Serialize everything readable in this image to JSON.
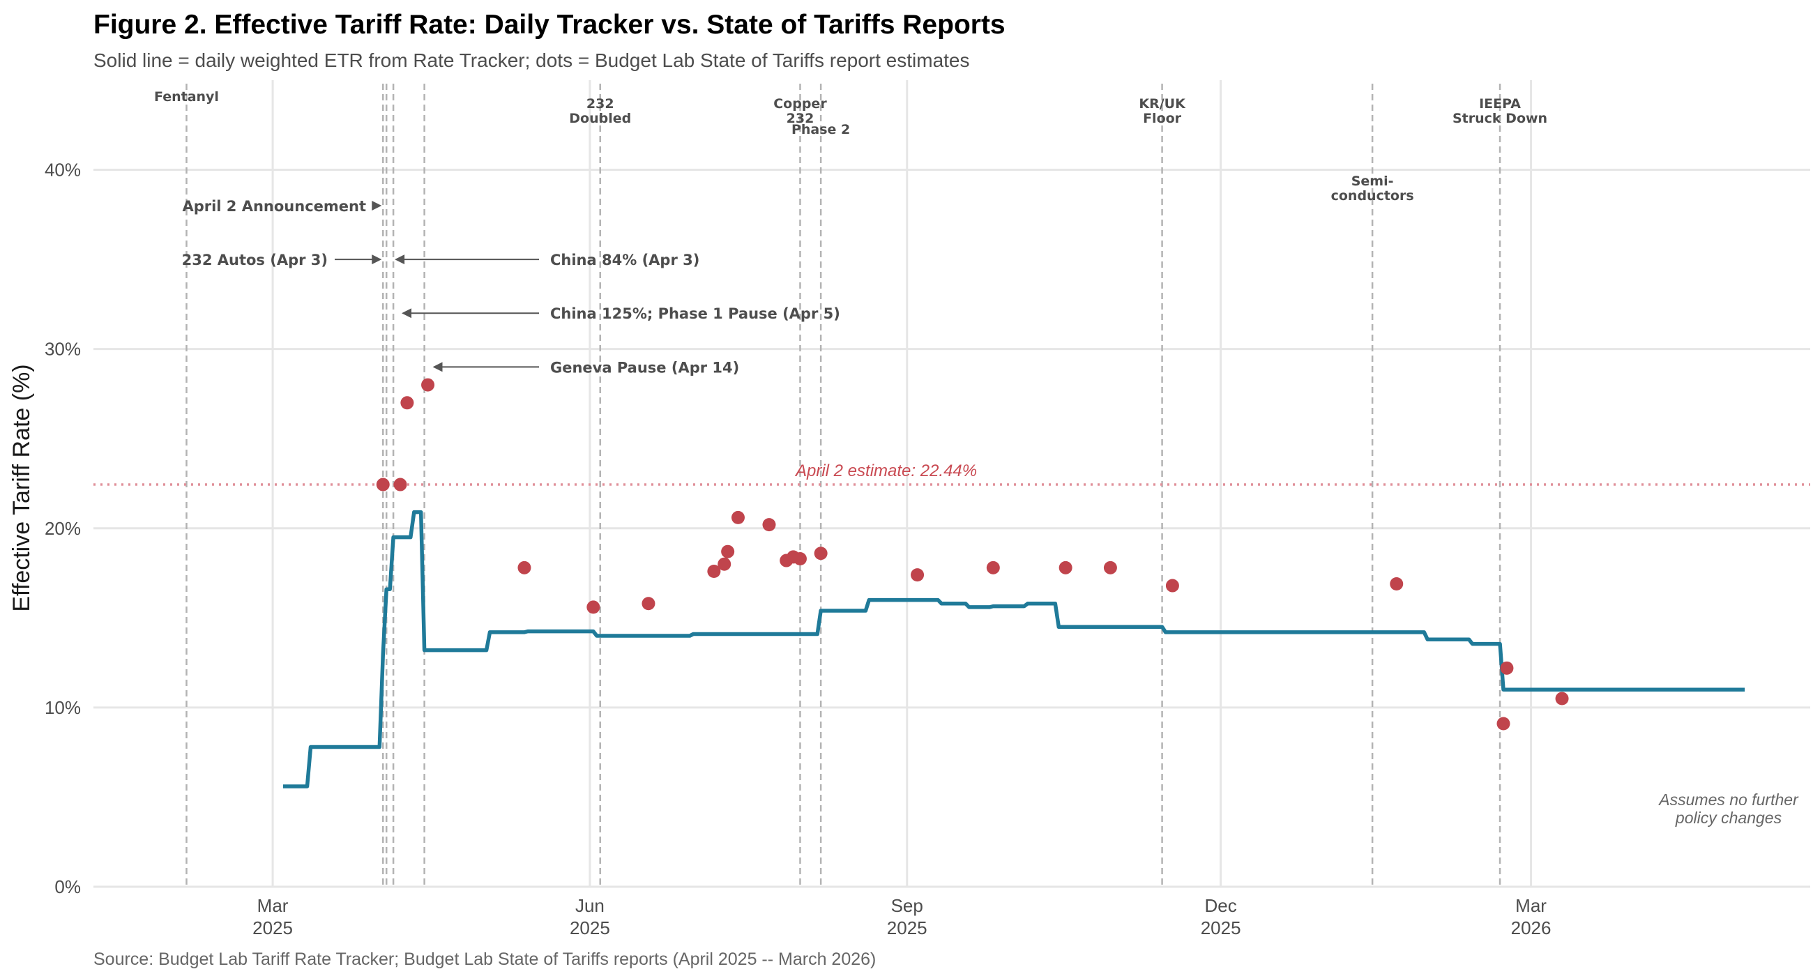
{
  "chart_data": {
    "type": "line",
    "title": "Figure 2. Effective Tariff Rate: Daily Tracker vs. State of Tariffs Reports",
    "subtitle": "Solid line = daily weighted ETR from Rate Tracker; dots = Budget Lab State of Tariffs report estimates",
    "caption": "Source: Budget Lab Tariff Rate Tracker; Budget Lab State of Tariffs reports (April 2025 -- March 2026)",
    "ylabel": "Effective Tariff Rate (%)",
    "xlabel": "",
    "xlim": [
      "2025-01-08",
      "2026-05-21"
    ],
    "ylim": [
      0,
      45
    ],
    "y_ticks": [
      {
        "value": 0,
        "label": "0%"
      },
      {
        "value": 10,
        "label": "10%"
      },
      {
        "value": 20,
        "label": "20%"
      },
      {
        "value": 30,
        "label": "30%"
      },
      {
        "value": 40,
        "label": "40%"
      }
    ],
    "x_ticks": [
      {
        "date": "2025-03-01",
        "line1": "Mar",
        "line2": "2025"
      },
      {
        "date": "2025-06-01",
        "line1": "Jun",
        "line2": "2025"
      },
      {
        "date": "2025-09-01",
        "line1": "Sep",
        "line2": "2025"
      },
      {
        "date": "2025-12-01",
        "line1": "Dec",
        "line2": "2025"
      },
      {
        "date": "2026-03-01",
        "line1": "Mar",
        "line2": "2026"
      }
    ],
    "grid": true,
    "colors": {
      "line": "#1f7a99",
      "dots": "#c0444c",
      "reference": "#e0909a",
      "events": "#b3b3b3",
      "arrows": "#555555"
    },
    "series": [
      {
        "type": "step-line",
        "points": [
          [
            "2025-03-04",
            5.6
          ],
          [
            "2025-03-11",
            5.6
          ],
          [
            "2025-03-12",
            7.8
          ],
          [
            "2025-04-01",
            7.8
          ],
          [
            "2025-04-02",
            13.0
          ],
          [
            "2025-04-03",
            16.6
          ],
          [
            "2025-04-04",
            16.6
          ],
          [
            "2025-04-05",
            19.5
          ],
          [
            "2025-04-09",
            19.5
          ],
          [
            "2025-04-10",
            19.5
          ],
          [
            "2025-04-11",
            20.9
          ],
          [
            "2025-04-13",
            20.9
          ],
          [
            "2025-04-14",
            13.2
          ],
          [
            "2025-05-02",
            13.2
          ],
          [
            "2025-05-03",
            14.2
          ],
          [
            "2025-05-13",
            14.2
          ],
          [
            "2025-05-14",
            14.25
          ],
          [
            "2025-06-02",
            14.25
          ],
          [
            "2025-06-03",
            14.0
          ],
          [
            "2025-06-30",
            14.0
          ],
          [
            "2025-07-01",
            14.1
          ],
          [
            "2025-08-06",
            14.1
          ],
          [
            "2025-08-07",
            15.4
          ],
          [
            "2025-08-20",
            15.4
          ],
          [
            "2025-08-21",
            16.0
          ],
          [
            "2025-09-10",
            16.0
          ],
          [
            "2025-09-11",
            15.8
          ],
          [
            "2025-09-18",
            15.8
          ],
          [
            "2025-09-19",
            15.6
          ],
          [
            "2025-09-25",
            15.6
          ],
          [
            "2025-09-26",
            15.65
          ],
          [
            "2025-10-05",
            15.65
          ],
          [
            "2025-10-06",
            15.8
          ],
          [
            "2025-10-14",
            15.8
          ],
          [
            "2025-10-15",
            14.5
          ],
          [
            "2025-11-14",
            14.5
          ],
          [
            "2025-11-15",
            14.2
          ],
          [
            "2026-01-29",
            14.2
          ],
          [
            "2026-01-30",
            13.8
          ],
          [
            "2026-02-11",
            13.8
          ],
          [
            "2026-02-12",
            13.55
          ],
          [
            "2026-02-20",
            13.55
          ],
          [
            "2026-02-21",
            11.0
          ],
          [
            "2026-05-02",
            11.0
          ]
        ]
      },
      {
        "type": "dots",
        "points": [
          [
            "2025-04-02",
            22.44
          ],
          [
            "2025-04-07",
            22.44
          ],
          [
            "2025-04-09",
            27.0
          ],
          [
            "2025-04-15",
            28.0
          ],
          [
            "2025-05-13",
            17.8
          ],
          [
            "2025-06-02",
            15.6
          ],
          [
            "2025-06-18",
            15.8
          ],
          [
            "2025-07-07",
            17.6
          ],
          [
            "2025-07-10",
            18.0
          ],
          [
            "2025-07-11",
            18.7
          ],
          [
            "2025-07-14",
            20.6
          ],
          [
            "2025-07-23",
            20.2
          ],
          [
            "2025-07-28",
            18.2
          ],
          [
            "2025-07-30",
            18.4
          ],
          [
            "2025-08-01",
            18.3
          ],
          [
            "2025-08-07",
            18.6
          ],
          [
            "2025-09-04",
            17.4
          ],
          [
            "2025-09-26",
            17.8
          ],
          [
            "2025-10-17",
            17.8
          ],
          [
            "2025-10-30",
            17.8
          ],
          [
            "2025-11-17",
            16.8
          ],
          [
            "2026-01-21",
            16.9
          ],
          [
            "2026-02-21",
            9.1
          ],
          [
            "2026-02-22",
            12.2
          ],
          [
            "2026-03-10",
            10.5
          ]
        ]
      }
    ],
    "reference_line": {
      "value": 22.44,
      "label": "April 2 estimate: 22.44%"
    },
    "event_lines": [
      {
        "date": "2025-02-04",
        "lines": [
          "Fentanyl"
        ],
        "level": 1
      },
      {
        "date": "2025-04-02",
        "lines": [],
        "level": 0
      },
      {
        "date": "2025-04-03",
        "lines": [],
        "level": 0
      },
      {
        "date": "2025-04-05",
        "lines": [],
        "level": 0
      },
      {
        "date": "2025-04-14",
        "lines": [],
        "level": 0
      },
      {
        "date": "2025-06-04",
        "lines": [
          "232",
          "Doubled"
        ],
        "level": 2
      },
      {
        "date": "2025-08-01",
        "lines": [
          "Copper",
          "232"
        ],
        "level": 2
      },
      {
        "date": "2025-08-07",
        "lines": [
          "Phase 2"
        ],
        "level": 3
      },
      {
        "date": "2025-11-14",
        "lines": [
          "KR/UK",
          "Floor"
        ],
        "level": 2
      },
      {
        "date": "2026-01-14",
        "lines": [
          "Semi-",
          "conductors"
        ],
        "level": 4
      },
      {
        "date": "2026-02-20",
        "lines": [
          "IEEPA",
          "Struck Down"
        ],
        "level": 2
      }
    ],
    "arrow_annotations": [
      {
        "label": "April 2 Announcement",
        "y": 38,
        "target": "2025-04-02",
        "side": "left"
      },
      {
        "label": "232 Autos (Apr 3)",
        "y": 35,
        "target": "2025-04-02",
        "side": "left"
      },
      {
        "label": "China 84% (Apr 3)",
        "y": 35,
        "target": "2025-04-05",
        "side": "right"
      },
      {
        "label": "China 125%; Phase 1 Pause (Apr 5)",
        "y": 32,
        "target": "2025-04-07",
        "side": "right"
      },
      {
        "label": "Geneva Pause (Apr 14)",
        "y": 29,
        "target": "2025-04-16",
        "side": "right"
      }
    ],
    "note": [
      "Assumes no further",
      "policy changes"
    ]
  }
}
